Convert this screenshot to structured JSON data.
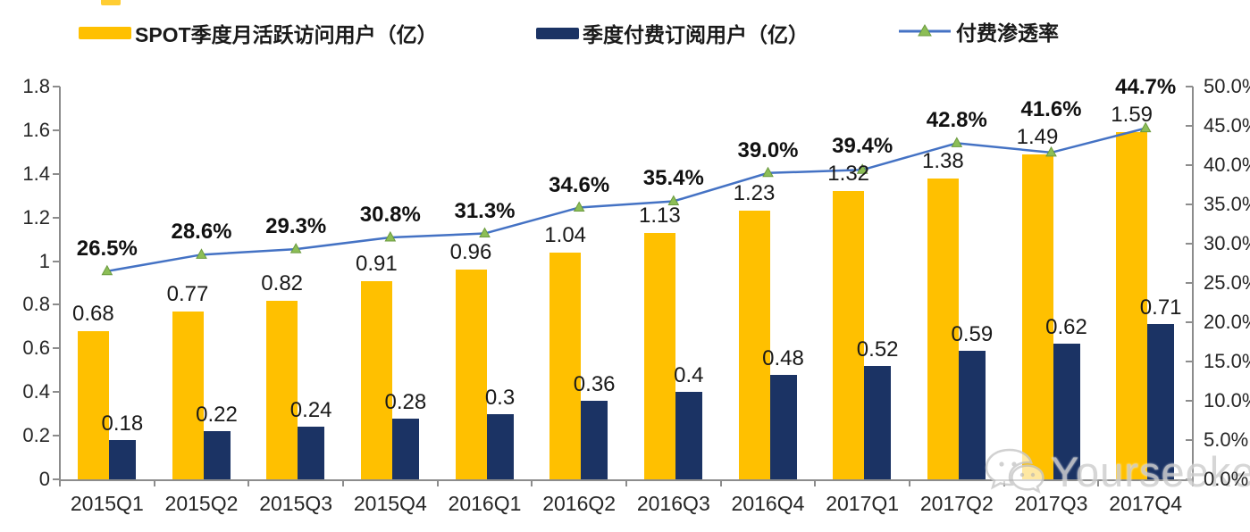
{
  "legend": {
    "items": [
      {
        "label": "SPOT季度月活跃访问用户（亿）",
        "swatch": "bar",
        "color": "#FFC000"
      },
      {
        "label": "季度付费订阅用户（亿）",
        "swatch": "bar",
        "color": "#1B3364"
      },
      {
        "label": "付费渗透率",
        "swatch": "line-marker",
        "line_color": "#4472C4",
        "marker_color": "#8CBE56"
      }
    ]
  },
  "chart_data": {
    "type": "combo (clustered bar + line)",
    "categories": [
      "2015Q1",
      "2015Q2",
      "2015Q3",
      "2015Q4",
      "2016Q1",
      "2016Q2",
      "2016Q3",
      "2016Q4",
      "2017Q1",
      "2017Q2",
      "2017Q3",
      "2017Q4"
    ],
    "series": [
      {
        "name": "SPOT季度月活跃访问用户（亿）",
        "type": "bar",
        "axis": "left",
        "color": "#FFC000",
        "values": [
          0.68,
          0.77,
          0.82,
          0.91,
          0.96,
          1.04,
          1.13,
          1.23,
          1.32,
          1.38,
          1.49,
          1.59
        ],
        "labels": [
          "0.68",
          "0.77",
          "0.82",
          "0.91",
          "0.96",
          "1.04",
          "1.13",
          "1.23",
          "1.32",
          "1.38",
          "1.49",
          "1.59"
        ]
      },
      {
        "name": "季度付费订阅用户（亿）",
        "type": "bar",
        "axis": "left",
        "color": "#1B3364",
        "values": [
          0.18,
          0.22,
          0.24,
          0.28,
          0.3,
          0.36,
          0.4,
          0.48,
          0.52,
          0.59,
          0.62,
          0.71
        ],
        "labels": [
          "0.18",
          "0.22",
          "0.24",
          "0.28",
          "0.3",
          "0.36",
          "0.4",
          "0.48",
          "0.52",
          "0.59",
          "0.62",
          "0.71"
        ]
      },
      {
        "name": "付费渗透率",
        "type": "line",
        "axis": "right",
        "color": "#4472C4",
        "marker": "triangle",
        "marker_color": "#8CBE56",
        "values": [
          26.5,
          28.6,
          29.3,
          30.8,
          31.3,
          34.6,
          35.4,
          39.0,
          39.4,
          42.8,
          41.6,
          44.7
        ],
        "labels": [
          "26.5%",
          "28.6%",
          "29.3%",
          "30.8%",
          "31.3%",
          "34.6%",
          "35.4%",
          "39.0%",
          "39.4%",
          "42.8%",
          "41.6%",
          "44.7%"
        ]
      }
    ],
    "left_axis": {
      "min": 0,
      "max": 1.8,
      "ticks": [
        "0",
        "0.2",
        "0.4",
        "0.6",
        "0.8",
        "1",
        "1.2",
        "1.4",
        "1.6",
        "1.8"
      ]
    },
    "right_axis": {
      "min": 0,
      "max": 50,
      "ticks": [
        "0.0%",
        "5.0%",
        "10.0%",
        "15.0%",
        "20.0%",
        "25.0%",
        "30.0%",
        "35.0%",
        "40.0%",
        "45.0%",
        "50.0%"
      ]
    },
    "grid": false,
    "legend_position": "top",
    "title": ""
  },
  "watermark": {
    "text": "Yourseeker",
    "icon": "wechat-icon"
  }
}
